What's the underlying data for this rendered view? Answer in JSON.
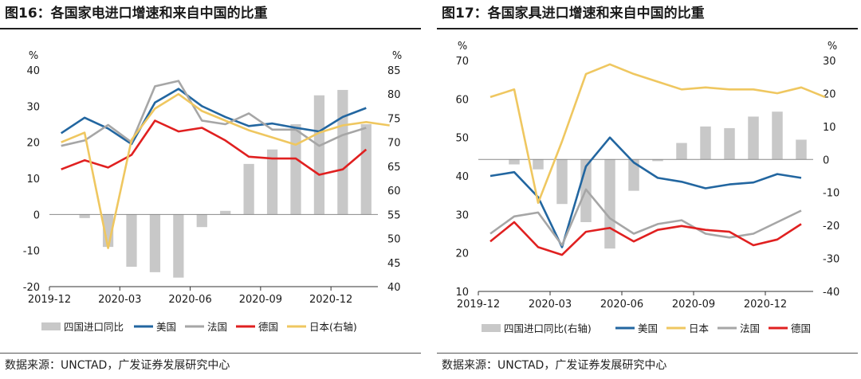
{
  "source_text": "数据来源：UNCTAD，广发证券发展研究中心",
  "chart_data": [
    {
      "type": "bar+line",
      "title": "图16：各国家电进口增速和来自中国的比重",
      "left_axis": {
        "unit": "%",
        "ylim": [
          -20,
          40
        ],
        "ticks": [
          -20,
          -10,
          0,
          10,
          20,
          30,
          40
        ]
      },
      "right_axis": {
        "unit": "%",
        "ylim": [
          40,
          85
        ],
        "ticks": [
          40,
          45,
          50,
          55,
          60,
          65,
          70,
          75,
          80,
          85
        ]
      },
      "x_labels": [
        "2019-12",
        "2020-03",
        "2020-06",
        "2020-09",
        "2020-12"
      ],
      "x_label_index": [
        0,
        3,
        6,
        9,
        12
      ],
      "bars": {
        "name": "四国进口同比",
        "color": "#c8c8c8",
        "values": [
          null,
          -1,
          -9,
          -14.5,
          -16,
          -17.5,
          -3.5,
          1,
          14,
          18,
          25,
          33,
          34.5,
          25
        ]
      },
      "lines": [
        {
          "name": "美国",
          "color": "#2266a0",
          "axis": "left",
          "values": [
            22.5,
            26.8,
            23.8,
            19.5,
            31,
            34.8,
            30,
            27,
            24.5,
            25.2,
            24,
            23,
            27,
            29.5
          ]
        },
        {
          "name": "法国",
          "color": "#a6a6a6",
          "axis": "left",
          "values": [
            19,
            20.5,
            24.8,
            20,
            35.5,
            37,
            26,
            25,
            28,
            23.5,
            23.5,
            19,
            22,
            24
          ]
        },
        {
          "name": "德国",
          "color": "#e02020",
          "axis": "left",
          "values": [
            12.5,
            15,
            13,
            16.5,
            26,
            23,
            24,
            20.5,
            16,
            15.5,
            15.5,
            11,
            12.5,
            18
          ]
        },
        {
          "name": "日本(右轴)",
          "color": "#efc760",
          "axis": "right",
          "values": [
            70,
            72,
            48,
            70.5,
            77,
            80,
            76.5,
            74.5,
            72.5,
            71,
            69.5,
            72,
            73.5,
            74.2,
            73.5
          ]
        }
      ],
      "legend": [
        "四国进口同比",
        "美国",
        "法国",
        "德国",
        "日本(右轴)"
      ]
    },
    {
      "type": "bar+line",
      "title": "图17：各国家具进口增速和来自中国的比重",
      "left_axis": {
        "unit": "%",
        "ylim": [
          10,
          70
        ],
        "ticks": [
          10,
          20,
          30,
          40,
          50,
          60,
          70
        ]
      },
      "right_axis": {
        "unit": "%",
        "ylim": [
          -40,
          30
        ],
        "ticks": [
          -40,
          -30,
          -20,
          -10,
          0,
          10,
          20,
          30
        ]
      },
      "x_labels": [
        "2019-12",
        "2020-03",
        "2020-06",
        "2020-09",
        "2020-12"
      ],
      "x_label_index": [
        0,
        3,
        6,
        9,
        12
      ],
      "bars": {
        "name": "四国进口同比(右轴)",
        "color": "#c8c8c8",
        "values": [
          null,
          -1.5,
          -3,
          -13.5,
          -19,
          -27,
          -9.5,
          -0.5,
          5,
          10,
          9.5,
          13,
          14.5,
          6
        ]
      },
      "lines": [
        {
          "name": "美国",
          "color": "#2266a0",
          "axis": "left",
          "values": [
            40,
            41,
            34.5,
            21.5,
            42.5,
            50,
            43.5,
            39.5,
            38.5,
            36.8,
            37.8,
            38.3,
            40.5,
            39.5
          ]
        },
        {
          "name": "日本",
          "color": "#efc760",
          "axis": "left",
          "values": [
            60.5,
            62.5,
            33,
            49,
            66.5,
            69,
            66.5,
            64.5,
            62.5,
            63,
            62.5,
            62.5,
            61.5,
            63,
            60.5
          ]
        },
        {
          "name": "法国",
          "color": "#a6a6a6",
          "axis": "left",
          "values": [
            25,
            29.5,
            30.5,
            22,
            36.5,
            29,
            25,
            27.5,
            28.5,
            25,
            24,
            25,
            28,
            31
          ]
        },
        {
          "name": "德国",
          "color": "#e02020",
          "axis": "left",
          "values": [
            23,
            28,
            21.5,
            19.5,
            25.5,
            26.5,
            23,
            26,
            27,
            26,
            25.5,
            22,
            23.5,
            27.5
          ]
        }
      ],
      "legend": [
        "四国进口同比(右轴)",
        "美国",
        "日本",
        "法国",
        "德国"
      ]
    }
  ]
}
